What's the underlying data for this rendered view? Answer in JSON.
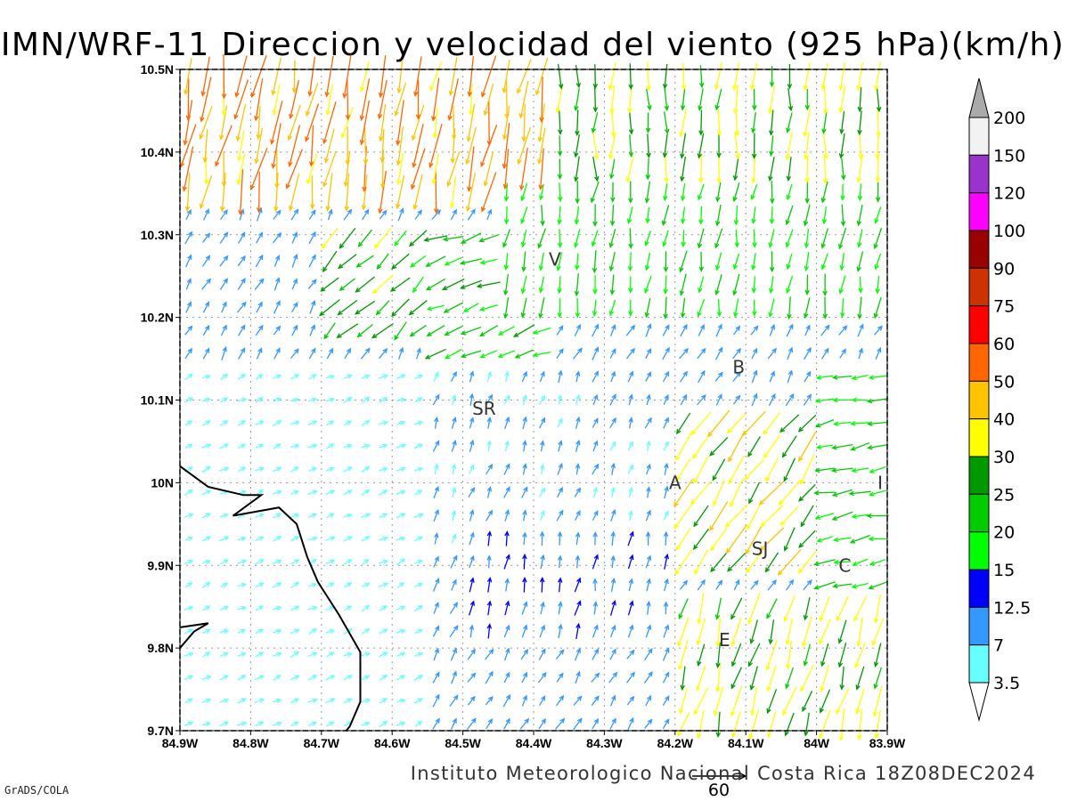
{
  "title": "IMN/WRF-11 Direccion y velocidad del viento (925 hPa)(km/h)",
  "footer": "Instituto Meteorologico Nacional Costa Rica 18Z08DEC2024",
  "credit": "GrADS/COLA",
  "ref_vector": {
    "label": "60",
    "speed": 60
  },
  "axes": {
    "x_ticks": [
      "84.9W",
      "84.8W",
      "84.7W",
      "84.6W",
      "84.5W",
      "84.4W",
      "84.3W",
      "84.2W",
      "84.1W",
      "84W",
      "83.9W"
    ],
    "y_ticks": [
      "10.5N",
      "10.4N",
      "10.3N",
      "10.2N",
      "10.1N",
      "10N",
      "9.9N",
      "9.8N",
      "9.7N"
    ],
    "lon_range": [
      -84.9,
      -83.9
    ],
    "lat_range": [
      9.7,
      10.5
    ]
  },
  "colorbar": {
    "labels": [
      "200",
      "150",
      "120",
      "100",
      "90",
      "75",
      "60",
      "50",
      "40",
      "30",
      "25",
      "20",
      "15",
      "12.5",
      "7",
      "3.5"
    ],
    "colors": [
      "#aaaaaa",
      "#f2f2f2",
      "#9933cc",
      "#ff00ff",
      "#990000",
      "#cc3300",
      "#ff0000",
      "#ff6600",
      "#ffc400",
      "#ffff00",
      "#009900",
      "#00cc00",
      "#00ff00",
      "#0000ff",
      "#3399ff",
      "#66ffff",
      "#ffffff"
    ]
  },
  "places": [
    {
      "label": "V",
      "lon": -84.37,
      "lat": 10.27
    },
    {
      "label": "B",
      "lon": -84.11,
      "lat": 10.14
    },
    {
      "label": "SR",
      "lon": -84.47,
      "lat": 10.09
    },
    {
      "label": "A",
      "lon": -84.2,
      "lat": 10.0
    },
    {
      "label": "I",
      "lon": -83.91,
      "lat": 10.0
    },
    {
      "label": "SJ",
      "lon": -84.08,
      "lat": 9.92
    },
    {
      "label": "C",
      "lon": -83.96,
      "lat": 9.9
    },
    {
      "label": "E",
      "lon": -84.13,
      "lat": 9.81
    }
  ],
  "coastline": [
    [
      -84.9,
      10.02
    ],
    [
      -84.86,
      9.995
    ],
    [
      -84.81,
      9.985
    ],
    [
      -84.785,
      9.985
    ],
    [
      -84.825,
      9.96
    ],
    [
      -84.76,
      9.97
    ],
    [
      -84.735,
      9.95
    ],
    [
      -84.72,
      9.91
    ],
    [
      -84.705,
      9.88
    ],
    [
      -84.675,
      9.84
    ],
    [
      -84.645,
      9.795
    ],
    [
      -84.645,
      9.735
    ],
    [
      -84.66,
      9.705
    ],
    [
      -84.665,
      9.7
    ]
  ],
  "coastline2": [
    [
      -84.9,
      9.8
    ],
    [
      -84.88,
      9.82
    ],
    [
      -84.86,
      9.83
    ],
    [
      -84.9,
      9.825
    ]
  ],
  "wind_fields": [
    {
      "lon": [
        -84.9,
        -84.38
      ],
      "lat": [
        10.33,
        10.5
      ],
      "dir": 260,
      "speed": 48
    },
    {
      "lon": [
        -84.38,
        -83.9
      ],
      "lat": [
        10.38,
        10.5
      ],
      "dir": 268,
      "speed": 28
    },
    {
      "lon": [
        -84.7,
        -84.45
      ],
      "lat": [
        10.16,
        10.32
      ],
      "dir": 225,
      "speed": 26
    },
    {
      "lon": [
        -84.55,
        -84.38
      ],
      "lat": [
        10.13,
        10.3
      ],
      "dir": 200,
      "speed": 22
    },
    {
      "lon": [
        -84.45,
        -83.9
      ],
      "lat": [
        10.2,
        10.36
      ],
      "dir": 262,
      "speed": 20
    },
    {
      "lon": [
        -84.9,
        -84.55
      ],
      "lat": [
        9.7,
        10.15
      ],
      "dir": 25,
      "speed": 5
    },
    {
      "lon": [
        -84.55,
        -84.2
      ],
      "lat": [
        9.93,
        10.13
      ],
      "dir": 70,
      "speed": 8
    },
    {
      "lon": [
        -84.5,
        -84.2
      ],
      "lat": [
        9.8,
        9.95
      ],
      "dir": 80,
      "speed": 12
    },
    {
      "lon": [
        -84.2,
        -84.0
      ],
      "lat": [
        9.9,
        10.1
      ],
      "dir": 235,
      "speed": 35
    },
    {
      "lon": [
        -84.0,
        -83.9
      ],
      "lat": [
        9.7,
        10.15
      ],
      "dir": 190,
      "speed": 20
    },
    {
      "lon": [
        -84.2,
        -83.9
      ],
      "lat": [
        9.7,
        9.85
      ],
      "dir": 255,
      "speed": 32
    }
  ]
}
